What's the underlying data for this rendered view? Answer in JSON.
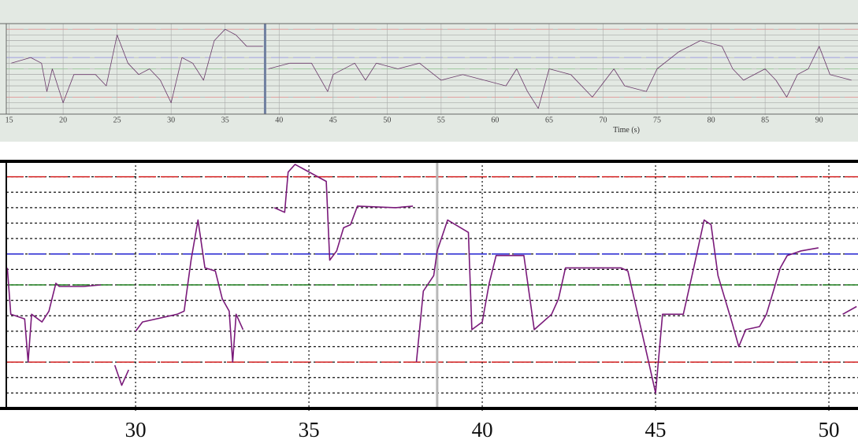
{
  "chart_data": [
    {
      "type": "line",
      "xlabel": "Time (s)",
      "xlim": [
        14.74,
        93.6
      ],
      "ylim": [
        0,
        16
      ],
      "xticks": [
        15,
        20,
        25,
        30,
        35,
        40,
        45,
        50,
        55,
        60,
        65,
        70,
        75,
        80,
        85,
        90
      ],
      "ygrid": [
        1,
        2,
        3,
        4,
        5,
        6,
        7,
        8,
        9,
        10,
        11,
        12,
        13,
        14,
        15
      ],
      "reference_lines": [
        {
          "value": 3,
          "color": "#e0a0a0"
        },
        {
          "value": 8,
          "color": "#a0c8a0"
        },
        {
          "value": 10,
          "color": "#a0a0e0"
        },
        {
          "value": 15,
          "color": "#e0a0a0"
        }
      ],
      "cursor_x": 38.7,
      "series": [
        {
          "color": "#6a3a6a",
          "x": [
            15.2,
            17,
            18,
            18.5,
            19,
            20,
            21,
            23,
            24,
            25,
            26,
            27,
            28,
            29,
            30,
            31,
            32,
            33,
            34,
            35,
            36,
            37,
            38.5,
            38.7,
            39,
            41,
            43,
            44.5,
            45,
            47,
            48,
            49,
            51,
            53,
            55,
            57,
            59,
            61,
            62,
            63,
            64,
            65,
            67,
            69,
            71,
            72,
            74,
            75,
            77,
            79,
            81,
            82,
            83,
            85,
            86,
            87,
            88,
            89,
            90,
            91,
            93
          ],
          "values": [
            9,
            10,
            9,
            4,
            8,
            2,
            7,
            7,
            5,
            14,
            9,
            7,
            8,
            6,
            2,
            10,
            9,
            6,
            13,
            15,
            14,
            12,
            12,
            null,
            8,
            9,
            9,
            4,
            7,
            9,
            6,
            9,
            8,
            9,
            6,
            7,
            6,
            5,
            8,
            4,
            1,
            8,
            7,
            3,
            8,
            5,
            4,
            8,
            11,
            13,
            12,
            8,
            6,
            8,
            6,
            3,
            7,
            8,
            12,
            7,
            6
          ]
        }
      ]
    },
    {
      "type": "line",
      "xlim": [
        26.27,
        50.84
      ],
      "ylim": [
        0,
        16
      ],
      "xticks": [
        30,
        35,
        40,
        45,
        50
      ],
      "ygrid": [
        1,
        2,
        3,
        4,
        5,
        6,
        7,
        8,
        9,
        10,
        11,
        12,
        13,
        14,
        15
      ],
      "reference_lines": [
        {
          "value": 3,
          "color": "#d42020"
        },
        {
          "value": 8,
          "color": "#208020"
        },
        {
          "value": 10,
          "color": "#2020d0"
        },
        {
          "value": 15,
          "color": "#d42020"
        }
      ],
      "cursor_x": 38.7,
      "series": [
        {
          "color": "#7a1a7a",
          "x": [
            26.3,
            26.4,
            26.8,
            26.9,
            27.0,
            27.3,
            27.5,
            27.7,
            27.8,
            28.5,
            29.0,
            29.3,
            29.4,
            29.6,
            29.8,
            29.9,
            30.0,
            30.2,
            31.2,
            31.4,
            31.6,
            31.8,
            32.0,
            32.3,
            32.5,
            32.7,
            32.8,
            32.9,
            33.1,
            33.5,
            34.0,
            34.3,
            34.4,
            34.6,
            35.5,
            35.6,
            35.8,
            36.0,
            36.2,
            36.4,
            37.5,
            38.0,
            38.05,
            38.1,
            38.3,
            38.6,
            38.7,
            39.0,
            39.6,
            39.7,
            40.0,
            40.2,
            40.4,
            41.2,
            41.5,
            42.0,
            42.2,
            42.4,
            44.0,
            44.2,
            44.8,
            45.0,
            45.2,
            45.8,
            46.1,
            46.4,
            46.6,
            46.8,
            47.0,
            47.2,
            47.4,
            47.6,
            48.0,
            48.2,
            48.4,
            48.6,
            48.8,
            49.2,
            49.7,
            50.0,
            50.4,
            50.8
          ],
          "values": [
            9.1,
            6.1,
            5.8,
            3,
            6.1,
            5.6,
            6.3,
            8.1,
            7.9,
            7.9,
            8,
            null,
            2.8,
            1.5,
            2.5,
            null,
            5,
            5.6,
            6.1,
            6.3,
            9.6,
            12.2,
            9.1,
            8.9,
            7.1,
            6.3,
            3,
            6.1,
            5.1,
            null,
            13,
            12.7,
            15.3,
            15.8,
            14.7,
            9.6,
            10.2,
            11.7,
            11.9,
            13.1,
            13,
            13.1,
            null,
            3,
            7.6,
            8.6,
            10.2,
            12.2,
            11.4,
            5.1,
            5.6,
            8.1,
            9.9,
            9.9,
            5.1,
            6.1,
            7.1,
            9.1,
            9.1,
            8.9,
            3,
            1,
            6.1,
            6.1,
            9.1,
            12.2,
            11.9,
            8.6,
            7.1,
            5.6,
            4,
            5.1,
            5.3,
            6.1,
            7.6,
            9.1,
            9.9,
            10.2,
            10.4,
            null,
            6.1,
            6.6
          ]
        }
      ]
    }
  ]
}
